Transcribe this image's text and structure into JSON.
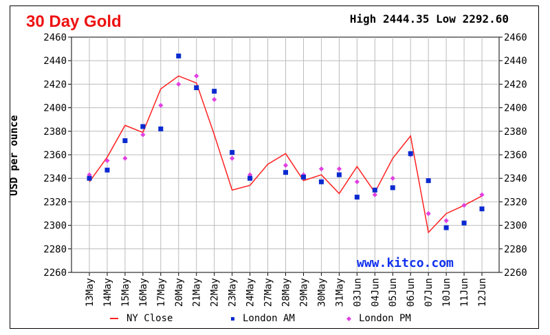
{
  "header": {
    "title": "30 Day Gold",
    "high_label": "High",
    "high_value": "2444.35",
    "low_label": "Low",
    "low_value": "2292.60"
  },
  "watermark": "www.kitco.com",
  "colors": {
    "title": "#ee1111",
    "ny_close": "#ff2020",
    "london_am": "#0a2ad0",
    "london_pm": "#e040e0",
    "grid": "#bbbbbb",
    "watermark": "#1030ee"
  },
  "chart_data": {
    "type": "line",
    "title": "30 Day Gold",
    "ylabel": "USD per ounce",
    "xlabel": "",
    "ylim": [
      2260,
      2460
    ],
    "yticks": [
      2260,
      2280,
      2300,
      2320,
      2340,
      2360,
      2380,
      2400,
      2420,
      2440,
      2460
    ],
    "grid": true,
    "legend_position": "bottom",
    "categories": [
      "13May",
      "14May",
      "15May",
      "16May",
      "17May",
      "20May",
      "21May",
      "22May",
      "23May",
      "24May",
      "27May",
      "28May",
      "29May",
      "30May",
      "31May",
      "03Jun",
      "04Jun",
      "05Jun",
      "06Jun",
      "07Jun",
      "10Jun",
      "11Jun",
      "12Jun"
    ],
    "series": [
      {
        "name": "NY Close",
        "style": "line",
        "values": [
          2337,
          2358,
          2385,
          2379,
          2416,
          2427,
          2421,
          2377,
          2330,
          2334,
          2352,
          2361,
          2338,
          2343,
          2327,
          2350,
          2328,
          2357,
          2376,
          2294,
          2310,
          2317,
          2325
        ]
      },
      {
        "name": "London AM",
        "style": "square",
        "values": [
          2340,
          2347,
          2372,
          2384,
          2382,
          2444,
          2417,
          2414,
          2362,
          2340,
          null,
          2345,
          2341,
          2337,
          2343,
          2324,
          2330,
          2332,
          2361,
          2338,
          2298,
          2302,
          2314
        ]
      },
      {
        "name": "London PM",
        "style": "diamond",
        "values": [
          2343,
          2355,
          2357,
          2377,
          2402,
          2420,
          2427,
          2407,
          2357,
          2343,
          null,
          2351,
          2343,
          2348,
          2348,
          2337,
          2326,
          2340,
          2360,
          2310,
          2304,
          2317,
          2326
        ]
      }
    ]
  }
}
